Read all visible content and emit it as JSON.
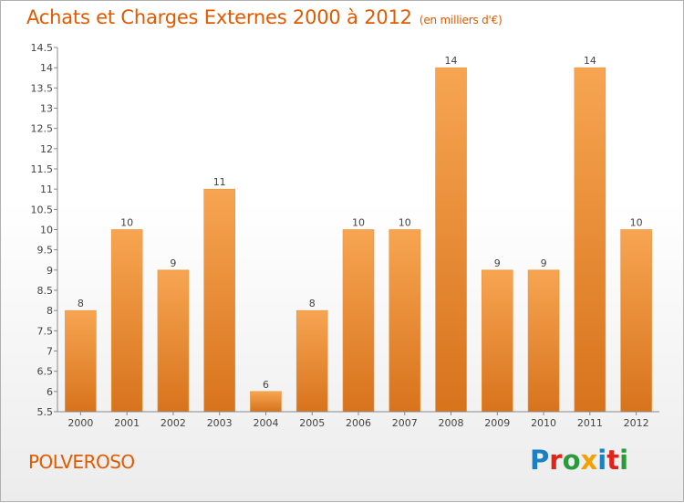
{
  "header": {
    "title": "Achats et Charges Externes 2000 à 2012",
    "unit": "(en milliers d'€)"
  },
  "footer": {
    "commune": "POLVEROSO",
    "brand": "Proxiti",
    "brand_colors": [
      "#1b7fc4",
      "#e2231a",
      "#2a9a3c",
      "#f2a100",
      "#1b7fc4",
      "#e2231a",
      "#2a9a3c"
    ]
  },
  "colors": {
    "accent": "#e05a00",
    "bar_top": "#f7a552",
    "bar_bottom": "#d8731c",
    "axis": "#888888"
  },
  "chart_data": {
    "type": "bar",
    "title": "Achats et Charges Externes 2000 à 2012",
    "xlabel": "",
    "ylabel": "",
    "categories": [
      "2000",
      "2001",
      "2002",
      "2003",
      "2004",
      "2005",
      "2006",
      "2007",
      "2008",
      "2009",
      "2010",
      "2011",
      "2012"
    ],
    "values": [
      8,
      10,
      9,
      11,
      6,
      8,
      10,
      10,
      14,
      9,
      9,
      14,
      10
    ],
    "ylim": [
      5.5,
      14.5
    ],
    "yticks": [
      "5.5",
      "6",
      "6.5",
      "7",
      "7.5",
      "8",
      "8.5",
      "9",
      "9.5",
      "10",
      "10.5",
      "11",
      "11.5",
      "12",
      "12.5",
      "13",
      "13.5",
      "14",
      "14.5"
    ],
    "grid": false,
    "legend": "none"
  }
}
